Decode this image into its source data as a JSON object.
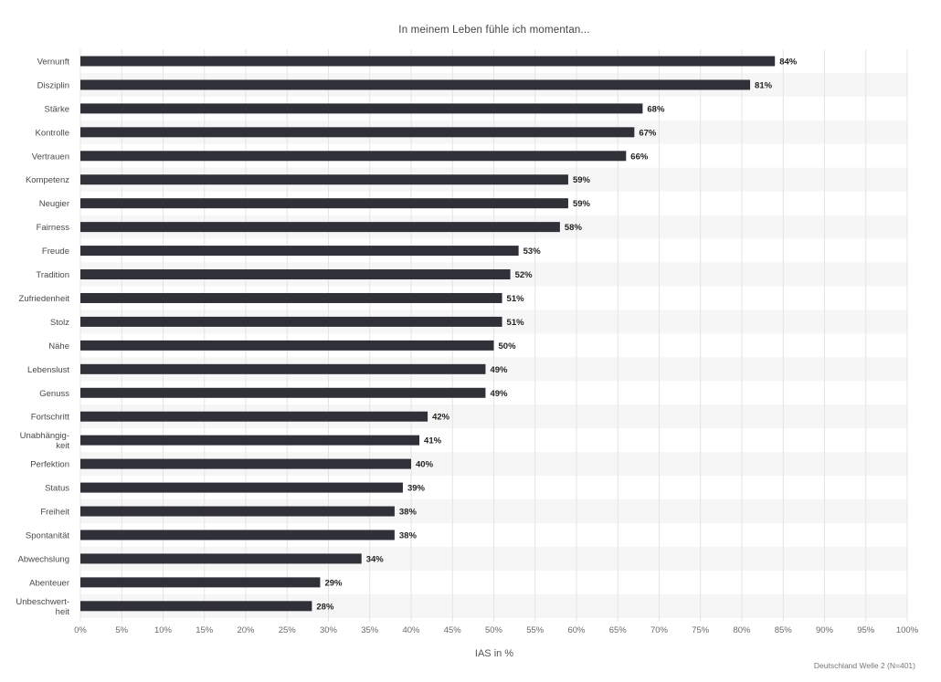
{
  "chart_data": {
    "type": "bar",
    "orientation": "horizontal",
    "title": "In meinem Leben fühle ich momentan...",
    "xlabel": "IAS in %",
    "ylabel": "",
    "xlim": [
      0,
      100
    ],
    "x_ticks": [
      "0%",
      "5%",
      "10%",
      "15%",
      "20%",
      "25%",
      "30%",
      "35%",
      "40%",
      "45%",
      "50%",
      "55%",
      "60%",
      "65%",
      "70%",
      "75%",
      "80%",
      "85%",
      "90%",
      "95%",
      "100%"
    ],
    "categories": [
      [
        "Vernunft"
      ],
      [
        "Disziplin"
      ],
      [
        "Stärke"
      ],
      [
        "Kontrolle"
      ],
      [
        "Vertrauen"
      ],
      [
        "Kompetenz"
      ],
      [
        "Neugier"
      ],
      [
        "Fairness"
      ],
      [
        "Freude"
      ],
      [
        "Tradition"
      ],
      [
        "Zufriedenheit"
      ],
      [
        "Stolz"
      ],
      [
        "Nähe"
      ],
      [
        "Lebenslust"
      ],
      [
        "Genuss"
      ],
      [
        "Fortschritt"
      ],
      [
        "Unabhängig-",
        "keit"
      ],
      [
        "Perfektion"
      ],
      [
        "Status"
      ],
      [
        "Freiheit"
      ],
      [
        "Spontanität"
      ],
      [
        "Abwechslung"
      ],
      [
        "Abenteuer"
      ],
      [
        "Unbeschwert-",
        "heit"
      ]
    ],
    "values": [
      84,
      81,
      68,
      67,
      66,
      59,
      59,
      58,
      53,
      52,
      51,
      51,
      50,
      49,
      49,
      42,
      41,
      40,
      39,
      38,
      38,
      34,
      29,
      28
    ],
    "value_labels": [
      "84%",
      "81%",
      "68%",
      "67%",
      "66%",
      "59%",
      "59%",
      "58%",
      "53%",
      "52%",
      "51%",
      "51%",
      "50%",
      "49%",
      "49%",
      "42%",
      "41%",
      "40%",
      "39%",
      "38%",
      "38%",
      "34%",
      "29%",
      "28%"
    ],
    "grid": true,
    "bar_color": "#2f3038",
    "stripe_color": "#f6f6f6",
    "grid_color": "#e4e4e4"
  },
  "source": "Deutschland Welle 2 (N=401)"
}
